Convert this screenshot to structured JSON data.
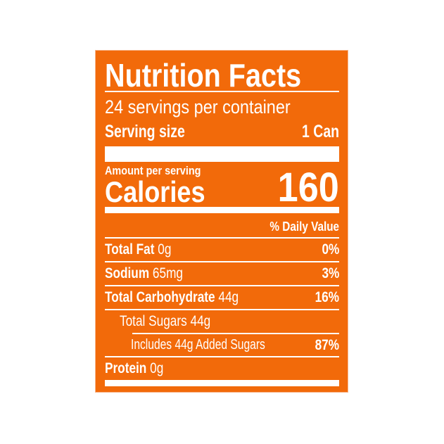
{
  "label": {
    "title": "Nutrition Facts",
    "servings_per_container": "24 servings per container",
    "serving_size_label": "Serving size",
    "serving_size_value": "1 Can",
    "amount_per_serving": "Amount per serving",
    "calories_label": "Calories",
    "calories_value": "160",
    "daily_value_header": "% Daily Value",
    "nutrients": [
      {
        "name": "Total Fat",
        "amount": "0g",
        "dv": "0%"
      },
      {
        "name": "Sodium",
        "amount": "65mg",
        "dv": "3%"
      },
      {
        "name": "Total Carbohydrate",
        "amount": "44g",
        "dv": "16%"
      },
      {
        "name": "Total Sugars 44g"
      },
      {
        "name": "Includes 44g Added Sugars",
        "dv": "87%"
      },
      {
        "name": "Protein",
        "amount": "0g"
      }
    ]
  },
  "colors": {
    "background": "#f26a0a",
    "text": "#ffffff"
  }
}
